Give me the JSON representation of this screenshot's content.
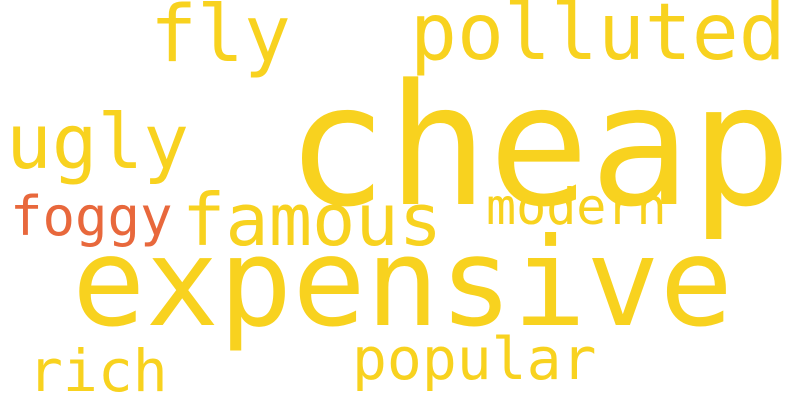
{
  "colors": {
    "background": "#ffffff",
    "primary": "#f8d21f",
    "accent": "#e8683c"
  },
  "words": [
    {
      "text": "cheap",
      "color": "#f8d21f"
    },
    {
      "text": "expensive",
      "color": "#f8d21f"
    },
    {
      "text": "polluted",
      "color": "#f8d21f"
    },
    {
      "text": "famous",
      "color": "#f8d21f"
    },
    {
      "text": "ugly",
      "color": "#f8d21f"
    },
    {
      "text": "fly",
      "color": "#f8d21f"
    },
    {
      "text": "popular",
      "color": "#f8d21f"
    },
    {
      "text": "rich",
      "color": "#f8d21f"
    },
    {
      "text": "modern",
      "color": "#f8d21f"
    },
    {
      "text": "foggy",
      "color": "#e8683c"
    }
  ]
}
